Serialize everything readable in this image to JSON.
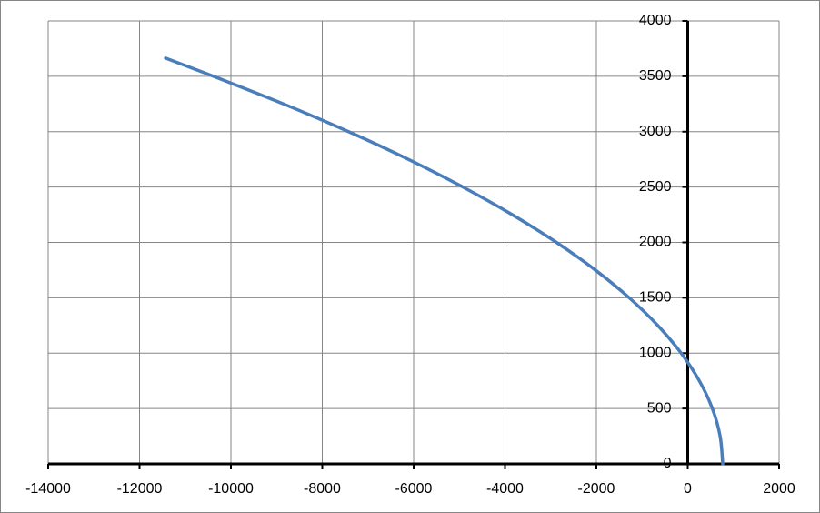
{
  "chart_data": {
    "type": "scatter",
    "line": true,
    "smooth": true,
    "color": "#4a7ebb",
    "x": [
      -11430,
      -10382,
      -8846,
      -7424,
      -6116,
      -4922,
      -3841,
      -2874,
      -2021,
      -1282,
      -656,
      -144,
      254,
      539,
      709,
      766
    ],
    "values": [
      3664,
      3500,
      3250,
      3000,
      2750,
      2500,
      2250,
      2000,
      1750,
      1500,
      1250,
      1000,
      750,
      500,
      250,
      0
    ],
    "xlim": [
      -14000,
      2000
    ],
    "xticks": [
      -14000,
      -12000,
      -10000,
      -8000,
      -6000,
      -4000,
      -2000,
      0,
      2000
    ],
    "ylim": [
      0,
      4000
    ],
    "yticks": [
      0,
      500,
      1000,
      1500,
      2000,
      2500,
      3000,
      3500,
      4000
    ],
    "grid": true
  }
}
